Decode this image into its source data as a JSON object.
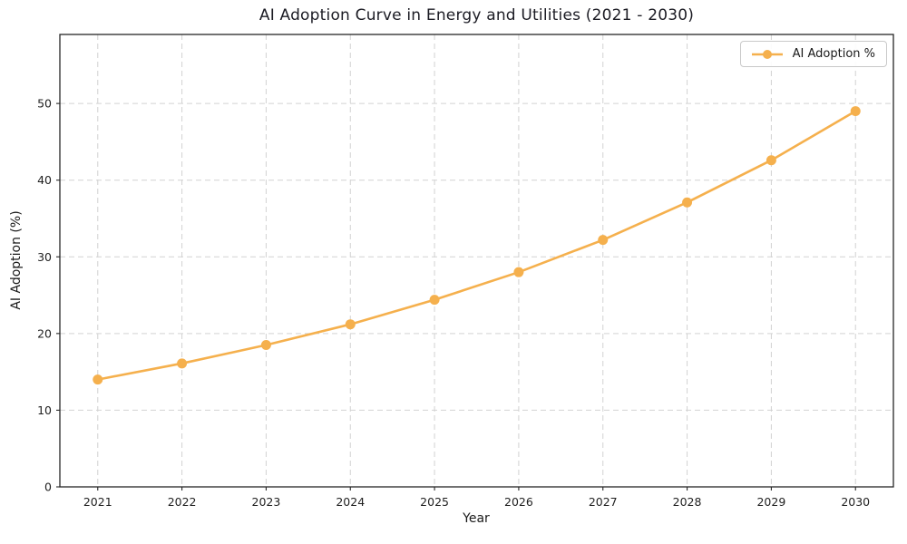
{
  "figure": {
    "title": "AI Adoption Curve in Energy and Utilities (2021 - 2030)"
  },
  "chart_data": {
    "type": "line",
    "title": "AI Adoption Curve in Energy and Utilities (2021 - 2030)",
    "xlabel": "Year",
    "ylabel": "AI Adoption (%)",
    "x": [
      2021,
      2022,
      2023,
      2024,
      2025,
      2026,
      2027,
      2028,
      2029,
      2030
    ],
    "series": [
      {
        "name": "AI Adoption %",
        "values": [
          14.0,
          16.1,
          18.5,
          21.2,
          24.4,
          28.0,
          32.2,
          37.1,
          42.6,
          49.0
        ],
        "color": "#F5B04D",
        "marker": "circle"
      }
    ],
    "x_range": [
      2020.55,
      2030.45
    ],
    "ylim": [
      0,
      59
    ],
    "yticks": [
      0,
      10,
      20,
      30,
      40,
      50
    ],
    "grid": true,
    "grid_style": "dashed",
    "legend": {
      "position": "upper right"
    },
    "colors": {
      "line": "#F5B04D",
      "grid": "#d2d2d2",
      "spine": "#262626",
      "text": "#1a1a1a"
    }
  }
}
